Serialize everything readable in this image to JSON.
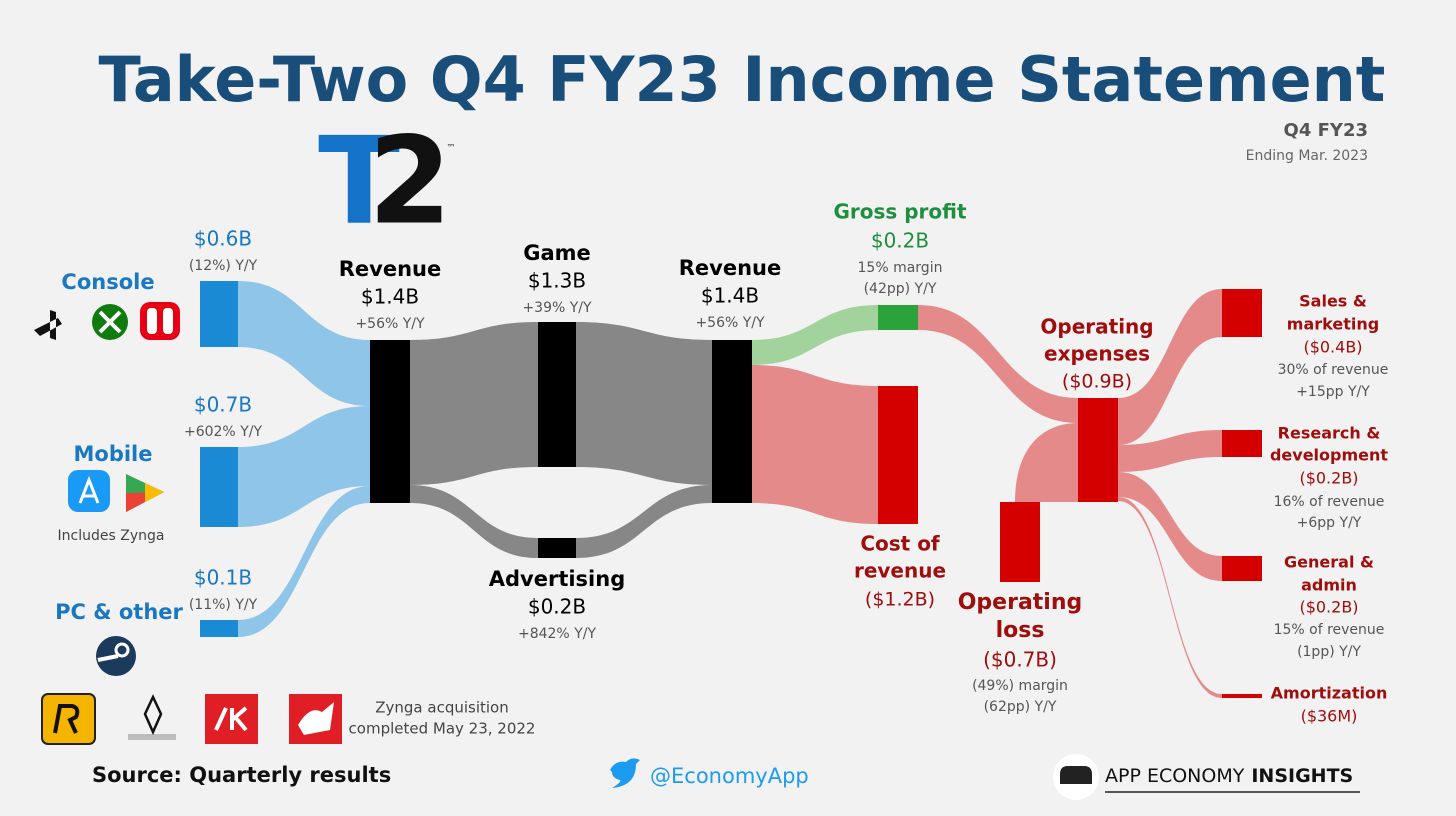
{
  "title": "Take-Two Q4 FY23 Income Statement",
  "period": {
    "label": "Q4 FY23",
    "ending": "Ending Mar. 2023"
  },
  "logo": {
    "t": "T",
    "two": "2",
    "tm": "™"
  },
  "segments": [
    {
      "name": "Console",
      "value": "$0.6B",
      "growth": "(12%) Y/Y"
    },
    {
      "name": "Mobile",
      "value": "$0.7B",
      "growth": "+602% Y/Y",
      "note": "Includes Zynga"
    },
    {
      "name": "PC & other",
      "value": "$0.1B",
      "growth": "(11%) Y/Y"
    }
  ],
  "revenue": {
    "name": "Revenue",
    "value": "$1.4B",
    "growth": "+56% Y/Y"
  },
  "game": {
    "name": "Game",
    "value": "$1.3B",
    "growth": "+39% Y/Y"
  },
  "advertising": {
    "name": "Advertising",
    "value": "$0.2B",
    "growth": "+842% Y/Y"
  },
  "total_revenue": {
    "name": "Revenue",
    "value": "$1.4B",
    "growth": "+56% Y/Y"
  },
  "gross_profit": {
    "name": "Gross profit",
    "value": "$0.2B",
    "margin": "15% margin",
    "growth": "(42pp) Y/Y"
  },
  "cost_of_revenue": {
    "name": [
      "Cost of",
      "revenue"
    ],
    "value": "($1.2B)"
  },
  "operating_expenses": {
    "name": [
      "Operating",
      "expenses"
    ],
    "value": "($0.9B)"
  },
  "operating_loss": {
    "name": [
      "Operating",
      "loss"
    ],
    "value": "($0.7B)",
    "margin": "(49%) margin",
    "growth": "(62pp) Y/Y"
  },
  "expenses": [
    {
      "name": [
        "Sales &",
        "marketing"
      ],
      "value": "($0.4B)",
      "share": "30% of revenue",
      "growth": "+15pp Y/Y"
    },
    {
      "name": [
        "Research &",
        "development"
      ],
      "value": "($0.2B)",
      "share": "16% of revenue",
      "growth": "+6pp Y/Y"
    },
    {
      "name": [
        "General &",
        "admin"
      ],
      "value": "($0.2B)",
      "share": "15% of revenue",
      "growth": "(1pp) Y/Y"
    },
    {
      "name": [
        "Amortization"
      ],
      "value": "($36M)"
    }
  ],
  "acquisition": [
    "Zynga acquisition",
    "completed May 23, 2022"
  ],
  "footer": {
    "source": "Source: Quarterly results",
    "twitter": "@EconomyApp",
    "brand_regular": "APP ECONOMY",
    "brand_bold": "INSIGHTS"
  }
}
